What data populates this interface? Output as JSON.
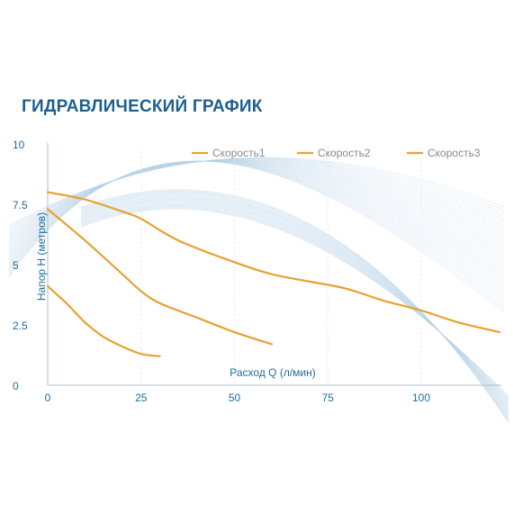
{
  "chart_data": {
    "type": "line",
    "title": "ГИДРАВЛИЧЕСКИЙ ГРАФИК",
    "xlabel": "Расход Q (л/мин)",
    "ylabel": "Напор H (метров)",
    "xlim": [
      0,
      122
    ],
    "ylim": [
      0,
      10
    ],
    "x_ticks": [
      "0",
      "25",
      "50",
      "75",
      "100"
    ],
    "y_ticks": [
      "0",
      "2.5",
      "5",
      "7.5",
      "10"
    ],
    "grid": "vertical dotted",
    "legend_position": "top-right",
    "line_color": "#e8a132",
    "series": [
      {
        "name": "Скорость1",
        "x": [
          0,
          10,
          20,
          25,
          35,
          50,
          60,
          70,
          80,
          90,
          100,
          110,
          121
        ],
        "y": [
          8.0,
          7.7,
          7.2,
          6.9,
          6.0,
          5.1,
          4.6,
          4.3,
          4.0,
          3.5,
          3.1,
          2.6,
          2.2
        ]
      },
      {
        "name": "Скорость2",
        "x": [
          0,
          10,
          20,
          25,
          30,
          40,
          50,
          60
        ],
        "y": [
          7.3,
          6.0,
          4.6,
          3.9,
          3.4,
          2.8,
          2.2,
          1.7
        ]
      },
      {
        "name": "Скорость3",
        "x": [
          0,
          5,
          10,
          15,
          20,
          25,
          30
        ],
        "y": [
          4.1,
          3.4,
          2.6,
          2.0,
          1.6,
          1.3,
          1.2
        ]
      }
    ]
  }
}
